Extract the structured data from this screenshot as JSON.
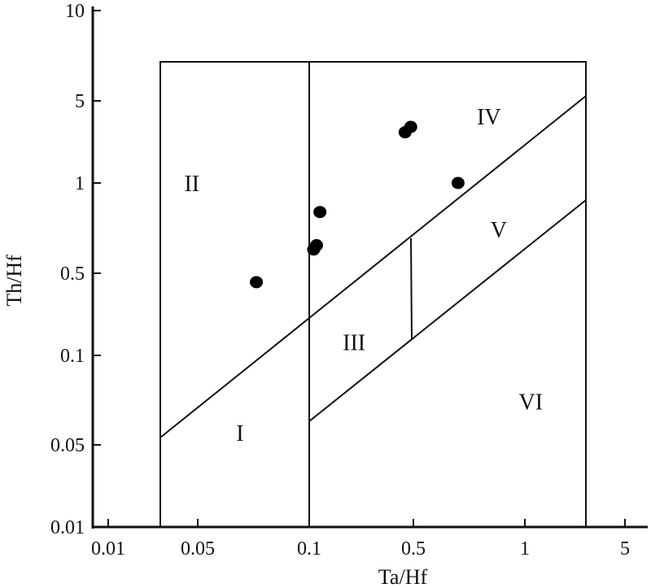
{
  "chart_data": {
    "type": "scatter",
    "title": "",
    "xlabel": "Ta/Hf",
    "ylabel": "Th/Hf",
    "x_scale": "log",
    "y_scale": "log",
    "grid": false,
    "x_ticks": [
      {
        "value": 0.01,
        "label": "0.01"
      },
      {
        "value": 0.05,
        "label": "0.05"
      },
      {
        "value": 0.1,
        "label": "0.1"
      },
      {
        "value": 0.5,
        "label": "0.5"
      },
      {
        "value": 1,
        "label": "1"
      },
      {
        "value": 5,
        "label": "5"
      }
    ],
    "y_ticks": [
      {
        "value": 0.01,
        "label": "0.01"
      },
      {
        "value": 0.05,
        "label": "0.05"
      },
      {
        "value": 0.1,
        "label": "0.1"
      },
      {
        "value": 0.5,
        "label": "0.5"
      },
      {
        "value": 1,
        "label": "1"
      },
      {
        "value": 5,
        "label": "5"
      },
      {
        "value": 10,
        "label": "10"
      }
    ],
    "points": [
      {
        "x": 0.072,
        "y": 0.42
      },
      {
        "x": 0.107,
        "y": 0.6
      },
      {
        "x": 0.112,
        "y": 0.62
      },
      {
        "x": 0.118,
        "y": 0.8
      },
      {
        "x": 0.44,
        "y": 2.7
      },
      {
        "x": 0.48,
        "y": 3.0
      },
      {
        "x": 0.66,
        "y": 1.0
      }
    ],
    "region_labels": [
      {
        "label": "I",
        "x": 0.065,
        "y": 0.055
      },
      {
        "label": "II",
        "x": 0.045,
        "y": 1.0
      },
      {
        "label": "III",
        "x": 0.2,
        "y": 0.13
      },
      {
        "label": "IV",
        "x": 0.8,
        "y": 3.7
      },
      {
        "label": "V",
        "x": 0.85,
        "y": 0.7
      },
      {
        "label": "VI",
        "x": 1.1,
        "y": 0.07
      }
    ]
  }
}
